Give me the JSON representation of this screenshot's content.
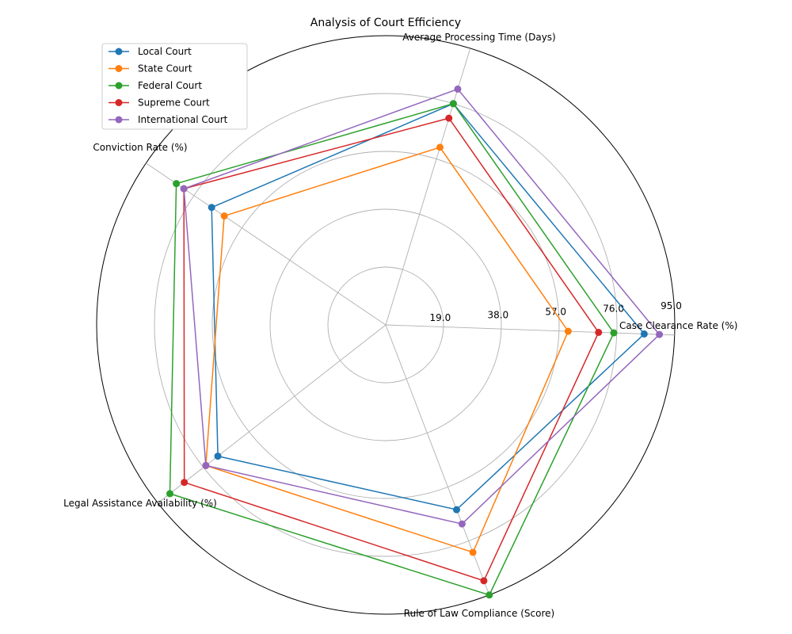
{
  "chart_data": {
    "type": "radar",
    "title": "Analysis of Court Efficiency",
    "axes": [
      "Case Clearance Rate (%)",
      "Average Processing Time (Days)",
      "Conviction Rate (%)",
      "Legal Assistance Availability (%)",
      "Rule of Law Compliance (Score)"
    ],
    "r_ticks": [
      "19.0",
      "38.0",
      "57.0",
      "76.0",
      "95.0"
    ],
    "r_max": 95,
    "grid": true,
    "legend_position": "top-left",
    "series": [
      {
        "name": "Local Court",
        "color": "#1f77b4",
        "values": [
          85,
          76,
          69,
          70,
          65
        ]
      },
      {
        "name": "State Court",
        "color": "#ff7f0e",
        "values": [
          60,
          61,
          64,
          75,
          80
        ]
      },
      {
        "name": "Federal Court",
        "color": "#2ca02c",
        "values": [
          75,
          76,
          83,
          90,
          95
        ]
      },
      {
        "name": "Supreme Court",
        "color": "#d62728",
        "values": [
          70,
          71,
          80,
          84,
          90
        ]
      },
      {
        "name": "International Court",
        "color": "#9467bd",
        "values": [
          90,
          81,
          80,
          75,
          70
        ]
      }
    ]
  }
}
